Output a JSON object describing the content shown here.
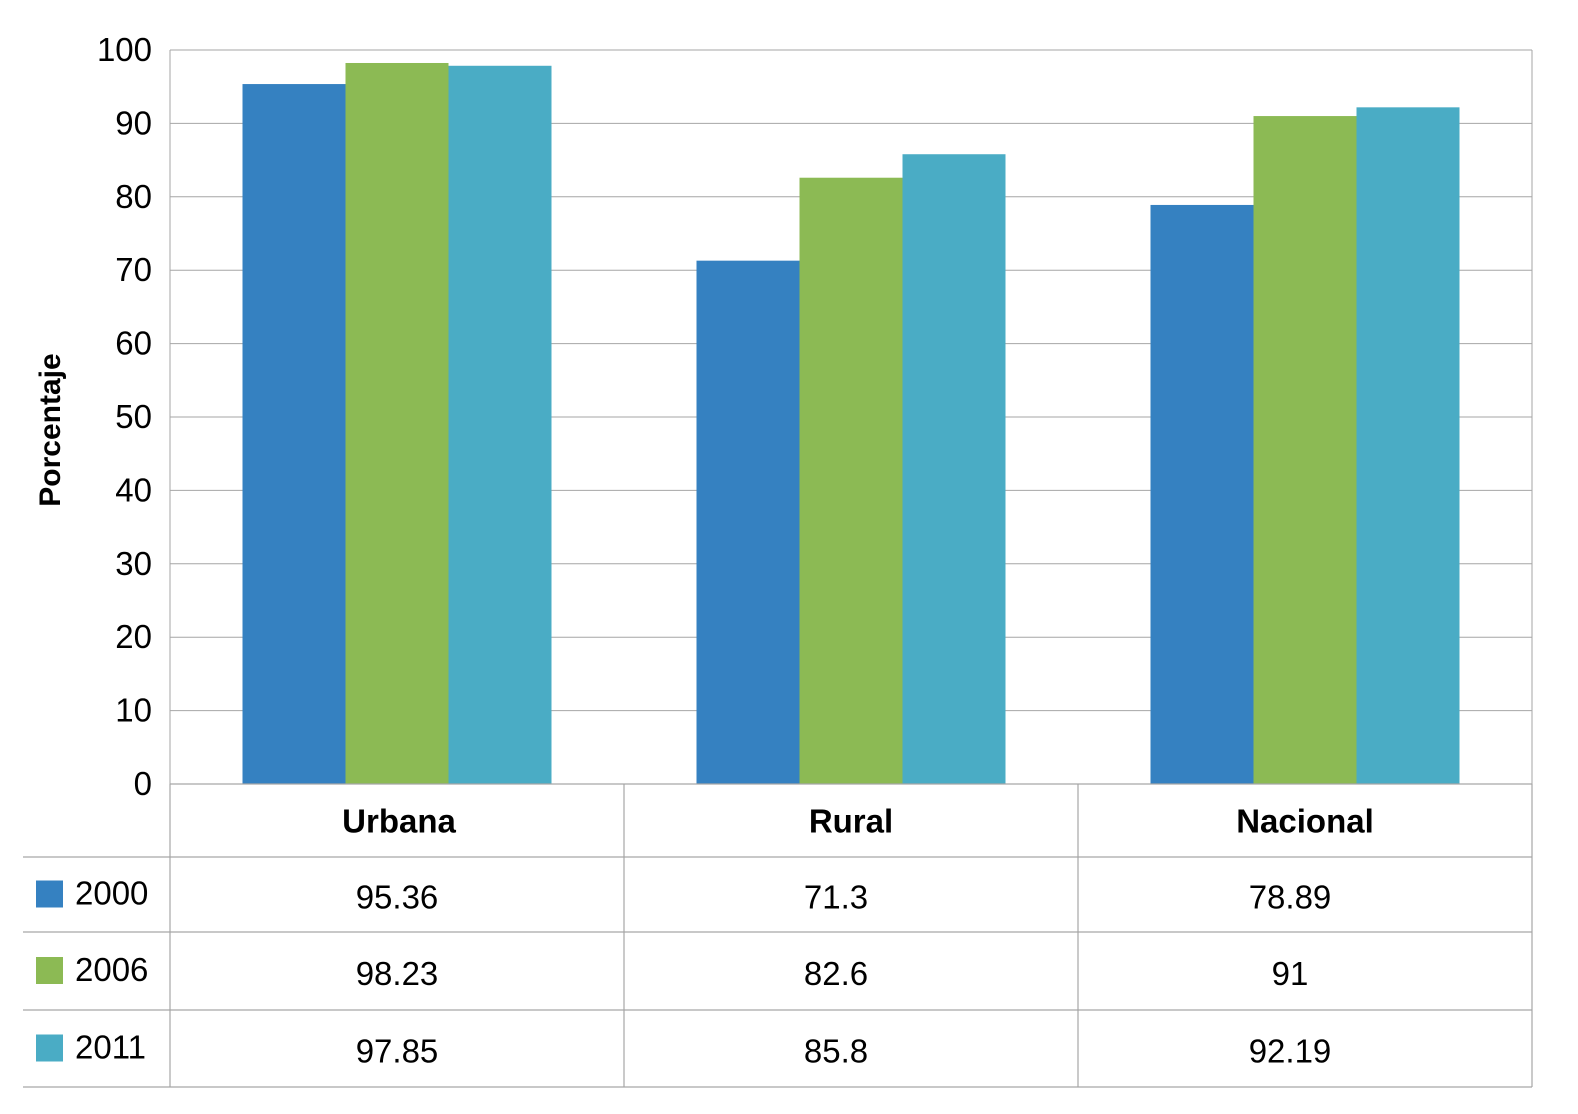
{
  "chart_data": {
    "type": "bar",
    "title": "",
    "xlabel": "",
    "ylabel": "Porcentaje",
    "ylim": [
      0,
      100
    ],
    "yticks": [
      "0",
      "10",
      "20",
      "30",
      "40",
      "50",
      "60",
      "70",
      "80",
      "90",
      "100"
    ],
    "grid": true,
    "categories": [
      "Urbana",
      "Rural",
      "Nacional"
    ],
    "series": [
      {
        "name": "2000",
        "color": "#3581c1",
        "values": [
          95.36,
          71.3,
          78.89
        ],
        "labels": [
          "95.36",
          "71.3",
          "78.89"
        ]
      },
      {
        "name": "2006",
        "color": "#8cba54",
        "values": [
          98.23,
          82.6,
          91
        ],
        "labels": [
          "98.23",
          "82.6",
          "91"
        ]
      },
      {
        "name": "2011",
        "color": "#4aacc5",
        "values": [
          97.85,
          85.8,
          92.19
        ],
        "labels": [
          "97.85",
          "85.8",
          "92.19"
        ]
      }
    ],
    "data_table": true
  }
}
